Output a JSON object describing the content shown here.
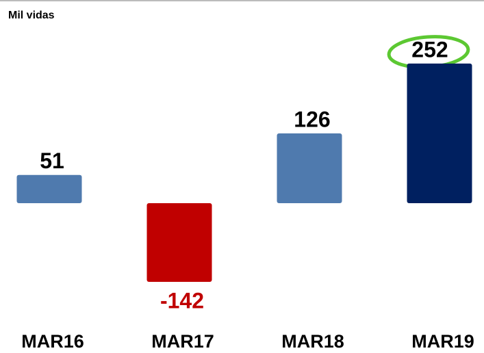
{
  "chart_data": {
    "type": "bar",
    "subtitle": "Mil vidas",
    "categories": [
      "MAR16",
      "MAR17",
      "MAR18",
      "MAR19"
    ],
    "values": [
      51,
      -142,
      126,
      252
    ],
    "colors": [
      "#4f7aae",
      "#c00000",
      "#4f7aae",
      "#002060"
    ]
  }
}
